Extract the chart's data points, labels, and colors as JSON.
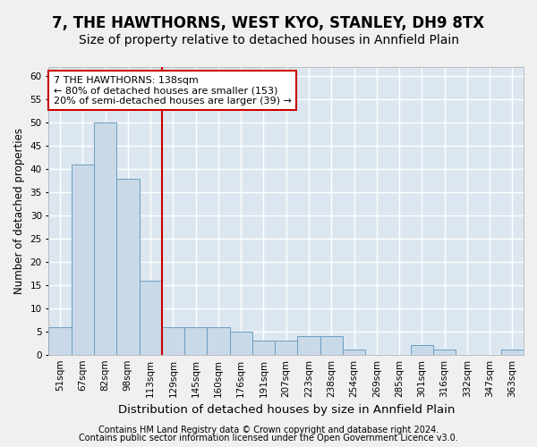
{
  "title1": "7, THE HAWTHORNS, WEST KYO, STANLEY, DH9 8TX",
  "title2": "Size of property relative to detached houses in Annfield Plain",
  "xlabel": "Distribution of detached houses by size in Annfield Plain",
  "ylabel": "Number of detached properties",
  "footnote1": "Contains HM Land Registry data © Crown copyright and database right 2024.",
  "footnote2": "Contains public sector information licensed under the Open Government Licence v3.0.",
  "bins": [
    "51sqm",
    "67sqm",
    "82sqm",
    "98sqm",
    "113sqm",
    "129sqm",
    "145sqm",
    "160sqm",
    "176sqm",
    "191sqm",
    "207sqm",
    "223sqm",
    "238sqm",
    "254sqm",
    "269sqm",
    "285sqm",
    "301sqm",
    "316sqm",
    "332sqm",
    "347sqm",
    "363sqm"
  ],
  "values": [
    6,
    41,
    50,
    38,
    16,
    6,
    6,
    6,
    5,
    3,
    3,
    4,
    4,
    1,
    0,
    0,
    2,
    1,
    0,
    0,
    1
  ],
  "bar_color": "#c9d9e8",
  "bar_edge_color": "#6a9fc0",
  "vline_x": 4.5,
  "vline_color": "#cc0000",
  "annotation_text": "7 THE HAWTHORNS: 138sqm\n← 80% of detached houses are smaller (153)\n20% of semi-detached houses are larger (39) →",
  "annotation_box_color": "#ffffff",
  "annotation_box_edge": "#cc0000",
  "ylim": [
    0,
    62
  ],
  "yticks": [
    0,
    5,
    10,
    15,
    20,
    25,
    30,
    35,
    40,
    45,
    50,
    55,
    60
  ],
  "bg_color": "#dce6f0",
  "grid_color": "#ffffff",
  "fig_bg_color": "#f0f0f0",
  "title1_fontsize": 12,
  "title2_fontsize": 10,
  "xlabel_fontsize": 9.5,
  "ylabel_fontsize": 8.5,
  "tick_fontsize": 7.5,
  "annot_fontsize": 8,
  "footnote_fontsize": 7
}
